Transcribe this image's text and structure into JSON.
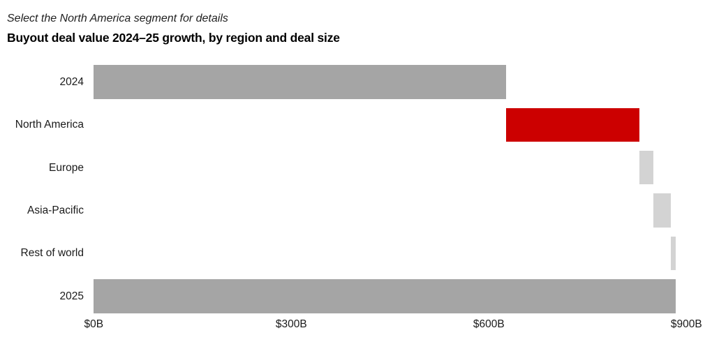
{
  "header": {
    "instruction": "Select the North America segment for details",
    "title": "Buyout deal value 2024–25 growth, by region and deal size"
  },
  "colors": {
    "total_bar": "#a5a5a5",
    "highlight_bar": "#cc0000",
    "segment_bar": "#d3d3d3",
    "text": "#1a1a1a",
    "background": "#ffffff"
  },
  "chart_data": {
    "type": "bar",
    "subtype": "horizontal-waterfall",
    "title": "Buyout deal value 2024–25 growth, by region and deal size",
    "unit": "$B",
    "xlim": [
      0,
      900
    ],
    "grid": false,
    "legend": "none",
    "categories": [
      "2024",
      "North America",
      "Europe",
      "Asia-Pacific",
      "Rest of world",
      "2025"
    ],
    "rows": [
      {
        "label": "2024",
        "start": 0,
        "end": 626,
        "value": 626,
        "role": "total"
      },
      {
        "label": "North America",
        "start": 626,
        "end": 829,
        "value": 203,
        "role": "increase-highlight"
      },
      {
        "label": "Europe",
        "start": 829,
        "end": 850,
        "value": 21,
        "role": "increase"
      },
      {
        "label": "Asia-Pacific",
        "start": 850,
        "end": 876,
        "value": 26,
        "role": "increase"
      },
      {
        "label": "Rest of world",
        "start": 876,
        "end": 884,
        "value": 8,
        "role": "increase"
      },
      {
        "label": "2025",
        "start": 0,
        "end": 884,
        "value": 884,
        "role": "total"
      }
    ],
    "x_ticks": [
      {
        "label": "$0B",
        "value": 0
      },
      {
        "label": "$300B",
        "value": 300
      },
      {
        "label": "$600B",
        "value": 600
      },
      {
        "label": "$900B",
        "value": 900
      }
    ]
  }
}
